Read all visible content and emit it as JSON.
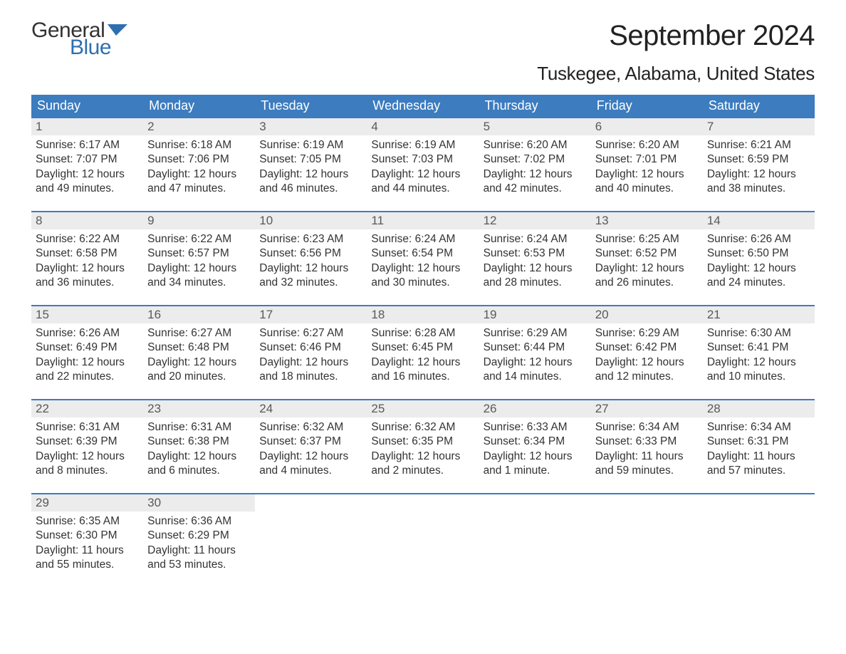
{
  "logo": {
    "word1": "General",
    "word2": "Blue",
    "flag_color": "#2f6fb0"
  },
  "title": "September 2024",
  "location": "Tuskegee, Alabama, United States",
  "colors": {
    "header_bg": "#3c7cbf",
    "header_text": "#ffffff",
    "daynum_bg": "#ececec",
    "daynum_text": "#595959",
    "body_text": "#333333",
    "week_border": "#3c7cbf",
    "page_bg": "#ffffff",
    "logo_blue": "#2f6fb0",
    "logo_general": "#333333"
  },
  "fonts": {
    "title_size_pt": 30,
    "location_size_pt": 20,
    "header_size_pt": 14,
    "daynum_size_pt": 13,
    "body_size_pt": 12,
    "family": "Arial"
  },
  "day_names": [
    "Sunday",
    "Monday",
    "Tuesday",
    "Wednesday",
    "Thursday",
    "Friday",
    "Saturday"
  ],
  "weeks": [
    [
      {
        "n": "1",
        "sunrise": "Sunrise: 6:17 AM",
        "sunset": "Sunset: 7:07 PM",
        "dl1": "Daylight: 12 hours",
        "dl2": "and 49 minutes."
      },
      {
        "n": "2",
        "sunrise": "Sunrise: 6:18 AM",
        "sunset": "Sunset: 7:06 PM",
        "dl1": "Daylight: 12 hours",
        "dl2": "and 47 minutes."
      },
      {
        "n": "3",
        "sunrise": "Sunrise: 6:19 AM",
        "sunset": "Sunset: 7:05 PM",
        "dl1": "Daylight: 12 hours",
        "dl2": "and 46 minutes."
      },
      {
        "n": "4",
        "sunrise": "Sunrise: 6:19 AM",
        "sunset": "Sunset: 7:03 PM",
        "dl1": "Daylight: 12 hours",
        "dl2": "and 44 minutes."
      },
      {
        "n": "5",
        "sunrise": "Sunrise: 6:20 AM",
        "sunset": "Sunset: 7:02 PM",
        "dl1": "Daylight: 12 hours",
        "dl2": "and 42 minutes."
      },
      {
        "n": "6",
        "sunrise": "Sunrise: 6:20 AM",
        "sunset": "Sunset: 7:01 PM",
        "dl1": "Daylight: 12 hours",
        "dl2": "and 40 minutes."
      },
      {
        "n": "7",
        "sunrise": "Sunrise: 6:21 AM",
        "sunset": "Sunset: 6:59 PM",
        "dl1": "Daylight: 12 hours",
        "dl2": "and 38 minutes."
      }
    ],
    [
      {
        "n": "8",
        "sunrise": "Sunrise: 6:22 AM",
        "sunset": "Sunset: 6:58 PM",
        "dl1": "Daylight: 12 hours",
        "dl2": "and 36 minutes."
      },
      {
        "n": "9",
        "sunrise": "Sunrise: 6:22 AM",
        "sunset": "Sunset: 6:57 PM",
        "dl1": "Daylight: 12 hours",
        "dl2": "and 34 minutes."
      },
      {
        "n": "10",
        "sunrise": "Sunrise: 6:23 AM",
        "sunset": "Sunset: 6:56 PM",
        "dl1": "Daylight: 12 hours",
        "dl2": "and 32 minutes."
      },
      {
        "n": "11",
        "sunrise": "Sunrise: 6:24 AM",
        "sunset": "Sunset: 6:54 PM",
        "dl1": "Daylight: 12 hours",
        "dl2": "and 30 minutes."
      },
      {
        "n": "12",
        "sunrise": "Sunrise: 6:24 AM",
        "sunset": "Sunset: 6:53 PM",
        "dl1": "Daylight: 12 hours",
        "dl2": "and 28 minutes."
      },
      {
        "n": "13",
        "sunrise": "Sunrise: 6:25 AM",
        "sunset": "Sunset: 6:52 PM",
        "dl1": "Daylight: 12 hours",
        "dl2": "and 26 minutes."
      },
      {
        "n": "14",
        "sunrise": "Sunrise: 6:26 AM",
        "sunset": "Sunset: 6:50 PM",
        "dl1": "Daylight: 12 hours",
        "dl2": "and 24 minutes."
      }
    ],
    [
      {
        "n": "15",
        "sunrise": "Sunrise: 6:26 AM",
        "sunset": "Sunset: 6:49 PM",
        "dl1": "Daylight: 12 hours",
        "dl2": "and 22 minutes."
      },
      {
        "n": "16",
        "sunrise": "Sunrise: 6:27 AM",
        "sunset": "Sunset: 6:48 PM",
        "dl1": "Daylight: 12 hours",
        "dl2": "and 20 minutes."
      },
      {
        "n": "17",
        "sunrise": "Sunrise: 6:27 AM",
        "sunset": "Sunset: 6:46 PM",
        "dl1": "Daylight: 12 hours",
        "dl2": "and 18 minutes."
      },
      {
        "n": "18",
        "sunrise": "Sunrise: 6:28 AM",
        "sunset": "Sunset: 6:45 PM",
        "dl1": "Daylight: 12 hours",
        "dl2": "and 16 minutes."
      },
      {
        "n": "19",
        "sunrise": "Sunrise: 6:29 AM",
        "sunset": "Sunset: 6:44 PM",
        "dl1": "Daylight: 12 hours",
        "dl2": "and 14 minutes."
      },
      {
        "n": "20",
        "sunrise": "Sunrise: 6:29 AM",
        "sunset": "Sunset: 6:42 PM",
        "dl1": "Daylight: 12 hours",
        "dl2": "and 12 minutes."
      },
      {
        "n": "21",
        "sunrise": "Sunrise: 6:30 AM",
        "sunset": "Sunset: 6:41 PM",
        "dl1": "Daylight: 12 hours",
        "dl2": "and 10 minutes."
      }
    ],
    [
      {
        "n": "22",
        "sunrise": "Sunrise: 6:31 AM",
        "sunset": "Sunset: 6:39 PM",
        "dl1": "Daylight: 12 hours",
        "dl2": "and 8 minutes."
      },
      {
        "n": "23",
        "sunrise": "Sunrise: 6:31 AM",
        "sunset": "Sunset: 6:38 PM",
        "dl1": "Daylight: 12 hours",
        "dl2": "and 6 minutes."
      },
      {
        "n": "24",
        "sunrise": "Sunrise: 6:32 AM",
        "sunset": "Sunset: 6:37 PM",
        "dl1": "Daylight: 12 hours",
        "dl2": "and 4 minutes."
      },
      {
        "n": "25",
        "sunrise": "Sunrise: 6:32 AM",
        "sunset": "Sunset: 6:35 PM",
        "dl1": "Daylight: 12 hours",
        "dl2": "and 2 minutes."
      },
      {
        "n": "26",
        "sunrise": "Sunrise: 6:33 AM",
        "sunset": "Sunset: 6:34 PM",
        "dl1": "Daylight: 12 hours",
        "dl2": "and 1 minute."
      },
      {
        "n": "27",
        "sunrise": "Sunrise: 6:34 AM",
        "sunset": "Sunset: 6:33 PM",
        "dl1": "Daylight: 11 hours",
        "dl2": "and 59 minutes."
      },
      {
        "n": "28",
        "sunrise": "Sunrise: 6:34 AM",
        "sunset": "Sunset: 6:31 PM",
        "dl1": "Daylight: 11 hours",
        "dl2": "and 57 minutes."
      }
    ],
    [
      {
        "n": "29",
        "sunrise": "Sunrise: 6:35 AM",
        "sunset": "Sunset: 6:30 PM",
        "dl1": "Daylight: 11 hours",
        "dl2": "and 55 minutes."
      },
      {
        "n": "30",
        "sunrise": "Sunrise: 6:36 AM",
        "sunset": "Sunset: 6:29 PM",
        "dl1": "Daylight: 11 hours",
        "dl2": "and 53 minutes."
      },
      {
        "empty": true
      },
      {
        "empty": true
      },
      {
        "empty": true
      },
      {
        "empty": true
      },
      {
        "empty": true
      }
    ]
  ]
}
